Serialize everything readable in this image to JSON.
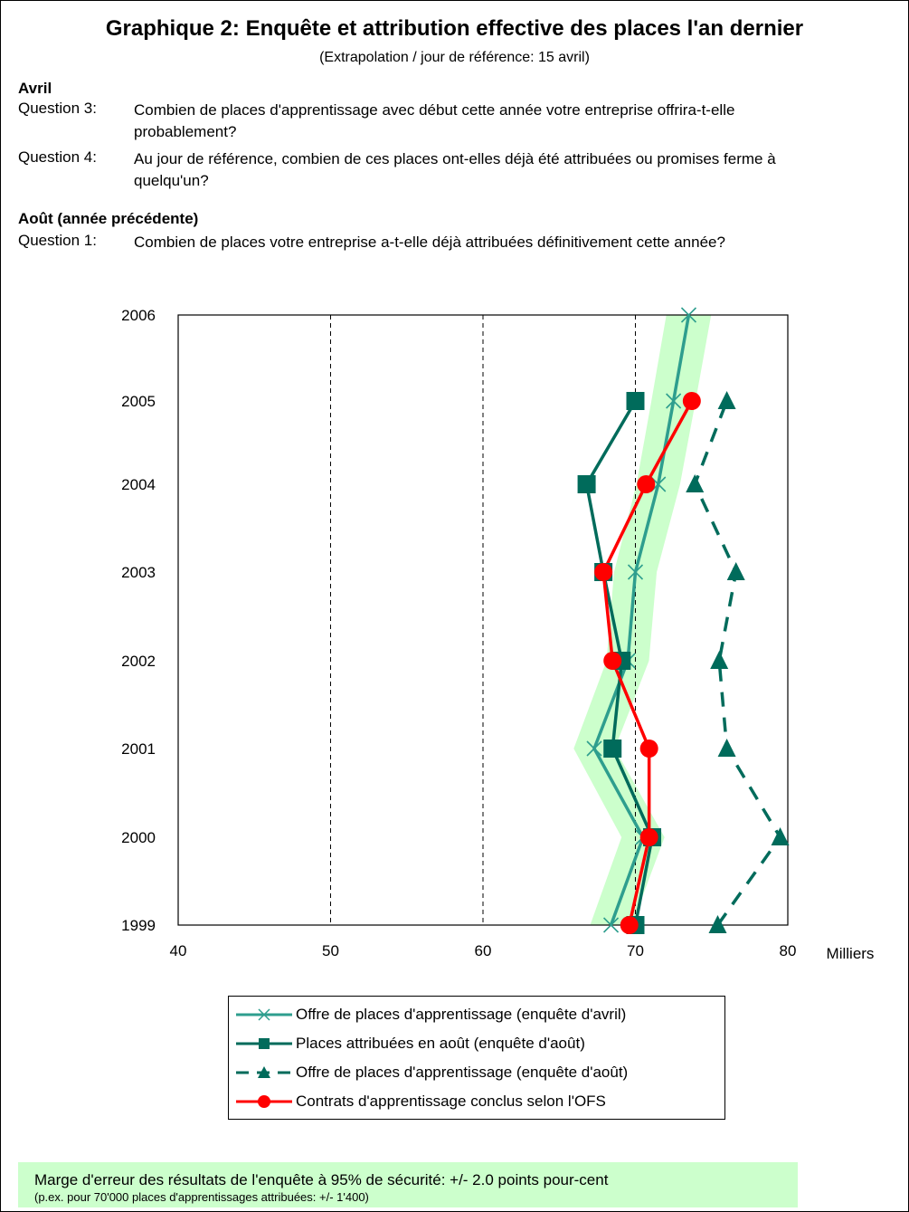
{
  "header": {
    "title": "Graphique 2: Enquête et attribution effective des places l'an dernier",
    "subtitle": "(Extrapolation / jour de référence: 15 avril)"
  },
  "questions": {
    "april_heading": "Avril",
    "q3_label": "Question 3:",
    "q3_text": "Combien de places d'apprentissage avec début cette année votre entreprise offrira-t-elle probablement?",
    "q4_label": "Question 4:",
    "q4_text": "Au jour de référence, combien de ces places ont-elles déjà été attribuées ou promises ferme à quelqu'un?",
    "august_heading": "Août (année précédente)",
    "q1_label": "Question 1:",
    "q1_text": "Combien de places votre entreprise a-t-elle déjà attribuées définitivement cette année?"
  },
  "note": {
    "line1": "Marge d'erreur des résultats de l'enquête à 95% de sécurité: +/- 2.0 points pour-cent",
    "line2": "(p.ex. pour 70'000 places d'apprentissages attribuées: +/- 1'400)"
  },
  "colors": {
    "offre_avril": "#2e9e8e",
    "places_aout": "#006b5b",
    "offre_aout": "#006b5b",
    "contrats_ofs": "#ff0000",
    "band": "#ccffcc"
  },
  "chart_data": {
    "type": "line",
    "orientation": "horizontal-values",
    "xlabel": "Milliers",
    "xlim": [
      40,
      80
    ],
    "xticks": [
      40,
      50,
      60,
      70,
      80
    ],
    "grid": "vertical dashed",
    "years": [
      "1999",
      "2000",
      "2001",
      "2002",
      "2003",
      "2004",
      "2005",
      "2006"
    ],
    "series": [
      {
        "name": "Offre de places d'apprentissage (enquête d'avril)",
        "marker": "x",
        "line": "solid",
        "band_margin_pct": 2.0,
        "values": [
          68.4,
          70.5,
          67.3,
          69.5,
          70.0,
          71.5,
          72.5,
          73.5
        ]
      },
      {
        "name": "Places attribuées en août (enquête d'août)",
        "marker": "square",
        "line": "solid",
        "values": [
          70.0,
          71.1,
          68.5,
          69.1,
          67.9,
          66.8,
          70.0,
          null
        ]
      },
      {
        "name": "Offre de places d'apprentissage (enquête d'août)",
        "marker": "triangle",
        "line": "dashed",
        "values": [
          75.4,
          79.5,
          76.0,
          75.5,
          76.6,
          73.9,
          76.0,
          null
        ]
      },
      {
        "name": "Contrats d'apprentissage conclus selon l'OFS",
        "marker": "circle",
        "line": "solid",
        "values": [
          69.6,
          70.9,
          70.9,
          68.5,
          67.9,
          70.7,
          73.7,
          null
        ]
      }
    ]
  }
}
